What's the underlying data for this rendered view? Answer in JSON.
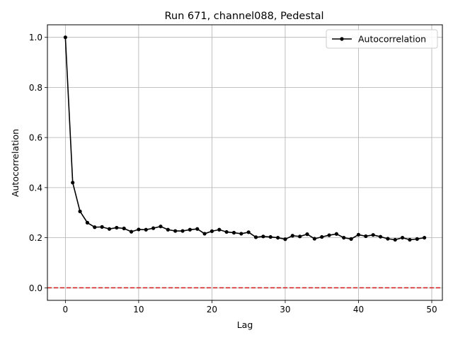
{
  "chart_data": {
    "type": "line",
    "title": "Run 671, channel088, Pedestal",
    "xlabel": "Lag",
    "ylabel": "Autocorrelation",
    "xlim": [
      -2.45,
      51.45
    ],
    "ylim": [
      -0.05,
      1.05
    ],
    "xticks": [
      0,
      10,
      20,
      30,
      40,
      50
    ],
    "yticks": [
      0.0,
      0.2,
      0.4,
      0.6,
      0.8,
      1.0
    ],
    "ytick_labels": [
      "0.0",
      "0.2",
      "0.4",
      "0.6",
      "0.8",
      "1.0"
    ],
    "grid": true,
    "legend": {
      "position": "upper right",
      "entries": [
        "Autocorrelation"
      ]
    },
    "reference_line": {
      "y": 0.0,
      "color": "#d62728",
      "style": "dashed"
    },
    "series": [
      {
        "name": "Autocorrelation",
        "color": "#000000",
        "marker": "circle",
        "x": [
          0,
          1,
          2,
          3,
          4,
          5,
          6,
          7,
          8,
          9,
          10,
          11,
          12,
          13,
          14,
          15,
          16,
          17,
          18,
          19,
          20,
          21,
          22,
          23,
          24,
          25,
          26,
          27,
          28,
          29,
          30,
          31,
          32,
          33,
          34,
          35,
          36,
          37,
          38,
          39,
          40,
          41,
          42,
          43,
          44,
          45,
          46,
          47,
          48,
          49
        ],
        "values": [
          1.0,
          0.42,
          0.305,
          0.26,
          0.242,
          0.243,
          0.235,
          0.24,
          0.237,
          0.224,
          0.233,
          0.232,
          0.238,
          0.245,
          0.232,
          0.227,
          0.227,
          0.232,
          0.235,
          0.216,
          0.226,
          0.232,
          0.223,
          0.22,
          0.216,
          0.222,
          0.202,
          0.205,
          0.203,
          0.2,
          0.194,
          0.208,
          0.205,
          0.214,
          0.196,
          0.203,
          0.21,
          0.215,
          0.2,
          0.195,
          0.212,
          0.206,
          0.211,
          0.204,
          0.196,
          0.192,
          0.2,
          0.192,
          0.195,
          0.2
        ]
      }
    ]
  }
}
